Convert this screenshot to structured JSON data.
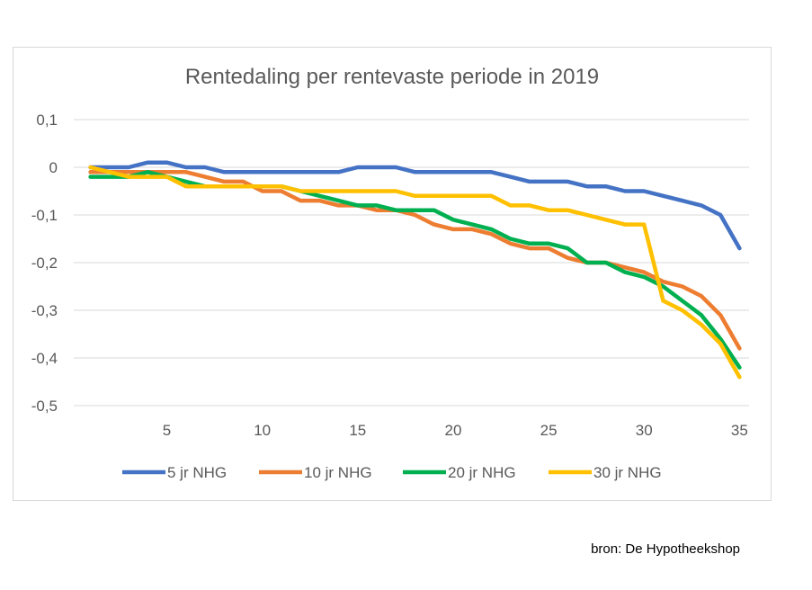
{
  "source": "bron: De Hypotheekshop",
  "chart_data": {
    "type": "line",
    "title": "Rentedaling per rentevaste periode in 2019",
    "xlabel": "",
    "ylabel": "",
    "x": [
      1,
      2,
      3,
      4,
      5,
      6,
      7,
      8,
      9,
      10,
      11,
      12,
      13,
      14,
      15,
      16,
      17,
      18,
      19,
      20,
      21,
      22,
      23,
      24,
      25,
      26,
      27,
      28,
      29,
      30,
      31,
      32,
      33,
      34,
      35
    ],
    "x_ticks": [
      5,
      10,
      15,
      20,
      25,
      30,
      35
    ],
    "y_ticks": [
      0.1,
      0,
      -0.1,
      -0.2,
      -0.3,
      -0.4,
      -0.5
    ],
    "y_tick_labels": [
      "0,1",
      "0",
      "-0,1",
      "-0,2",
      "-0,3",
      "-0,4",
      "-0,5"
    ],
    "xlim": [
      0.5,
      35.5
    ],
    "ylim": [
      -0.5,
      0.1
    ],
    "grid": true,
    "legend_position": "bottom",
    "series": [
      {
        "name": "5 jr NHG",
        "color": "#4472C4",
        "values": [
          0,
          0,
          0,
          0.01,
          0.01,
          0,
          0,
          -0.01,
          -0.01,
          -0.01,
          -0.01,
          -0.01,
          -0.01,
          -0.01,
          0,
          0,
          0,
          -0.01,
          -0.01,
          -0.01,
          -0.01,
          -0.01,
          -0.02,
          -0.03,
          -0.03,
          -0.03,
          -0.04,
          -0.04,
          -0.05,
          -0.05,
          -0.06,
          -0.07,
          -0.08,
          -0.1,
          -0.17
        ]
      },
      {
        "name": "10 jr NHG",
        "color": "#ED7D31",
        "values": [
          -0.01,
          -0.01,
          -0.01,
          -0.01,
          -0.01,
          -0.01,
          -0.02,
          -0.03,
          -0.03,
          -0.05,
          -0.05,
          -0.07,
          -0.07,
          -0.08,
          -0.08,
          -0.09,
          -0.09,
          -0.1,
          -0.12,
          -0.13,
          -0.13,
          -0.14,
          -0.16,
          -0.17,
          -0.17,
          -0.19,
          -0.2,
          -0.2,
          -0.21,
          -0.22,
          -0.24,
          -0.25,
          -0.27,
          -0.31,
          -0.38
        ]
      },
      {
        "name": "20 jr NHG",
        "color": "#00B050",
        "values": [
          -0.02,
          -0.02,
          -0.02,
          -0.01,
          -0.02,
          -0.03,
          -0.04,
          -0.04,
          -0.04,
          -0.04,
          -0.04,
          -0.05,
          -0.06,
          -0.07,
          -0.08,
          -0.08,
          -0.09,
          -0.09,
          -0.09,
          -0.11,
          -0.12,
          -0.13,
          -0.15,
          -0.16,
          -0.16,
          -0.17,
          -0.2,
          -0.2,
          -0.22,
          -0.23,
          -0.25,
          -0.28,
          -0.31,
          -0.36,
          -0.42
        ]
      },
      {
        "name": "30 jr NHG",
        "color": "#FFC000",
        "values": [
          0,
          -0.01,
          -0.02,
          -0.02,
          -0.02,
          -0.04,
          -0.04,
          -0.04,
          -0.04,
          -0.04,
          -0.04,
          -0.05,
          -0.05,
          -0.05,
          -0.05,
          -0.05,
          -0.05,
          -0.06,
          -0.06,
          -0.06,
          -0.06,
          -0.06,
          -0.08,
          -0.08,
          -0.09,
          -0.09,
          -0.1,
          -0.11,
          -0.12,
          -0.12,
          -0.28,
          -0.3,
          -0.33,
          -0.37,
          -0.44
        ]
      }
    ]
  }
}
